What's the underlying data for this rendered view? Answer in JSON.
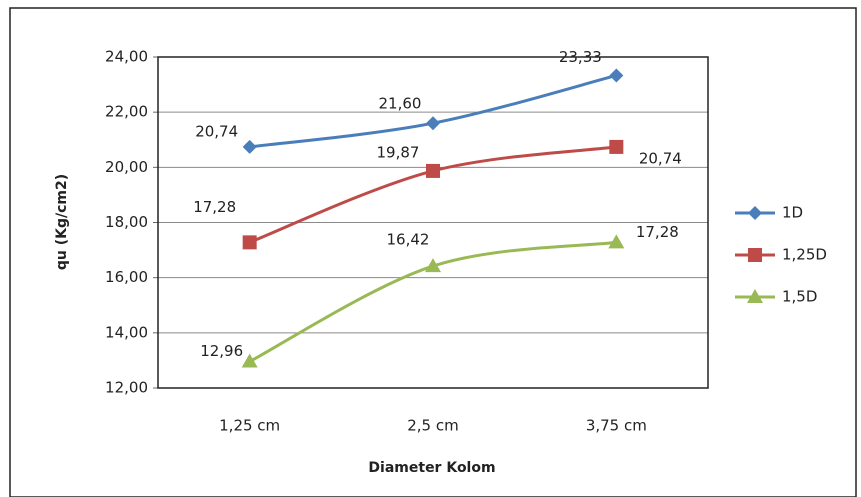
{
  "chart_data": {
    "type": "line",
    "x_label": "Diameter Kolom",
    "y_label": "qu (Kg/cm2)",
    "categories": [
      "1,25 cm",
      "2,5 cm",
      "3,75 cm"
    ],
    "series": [
      {
        "name": "1D",
        "color": "#4a7ebb",
        "marker": "diamond",
        "values": [
          20.74,
          21.6,
          23.33
        ],
        "value_labels": [
          "20,74",
          "21,60",
          "23,33"
        ]
      },
      {
        "name": "1,25D",
        "color": "#be4b48",
        "marker": "square",
        "values": [
          17.28,
          19.87,
          20.74
        ],
        "value_labels": [
          "17,28",
          "19,87",
          "20,74"
        ]
      },
      {
        "name": "1,5D",
        "color": "#98b954",
        "marker": "triangle",
        "values": [
          12.96,
          16.42,
          17.28
        ],
        "value_labels": [
          "12,96",
          "16,42",
          "17,28"
        ]
      }
    ],
    "ylim": [
      12,
      24
    ],
    "yticks": [
      {
        "value": 12,
        "label": "12,00"
      },
      {
        "value": 14,
        "label": "14,00"
      },
      {
        "value": 16,
        "label": "16,00"
      },
      {
        "value": 18,
        "label": "18,00"
      },
      {
        "value": 20,
        "label": "20,00"
      },
      {
        "value": 22,
        "label": "22,00"
      },
      {
        "value": 24,
        "label": "24,00"
      }
    ],
    "grid": true,
    "legend": "right"
  }
}
